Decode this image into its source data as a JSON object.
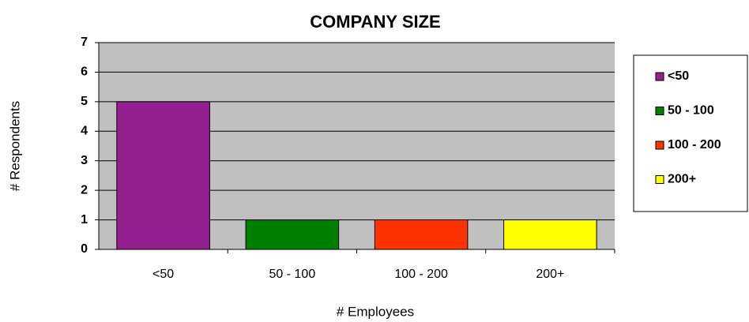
{
  "chart_data": {
    "type": "bar",
    "title": "COMPANY SIZE",
    "x_label": "# Employees",
    "y_label": "# Respondents",
    "categories": [
      "<50",
      "50 - 100",
      "100 - 200",
      "200+"
    ],
    "values": [
      5,
      1,
      1,
      1
    ],
    "colors": [
      "#942092",
      "#008000",
      "#ff3300",
      "#ffff00"
    ],
    "ylim": [
      0,
      7
    ],
    "yticks": [
      0,
      1,
      2,
      3,
      4,
      5,
      6,
      7
    ],
    "grid": true,
    "legend": "right"
  }
}
